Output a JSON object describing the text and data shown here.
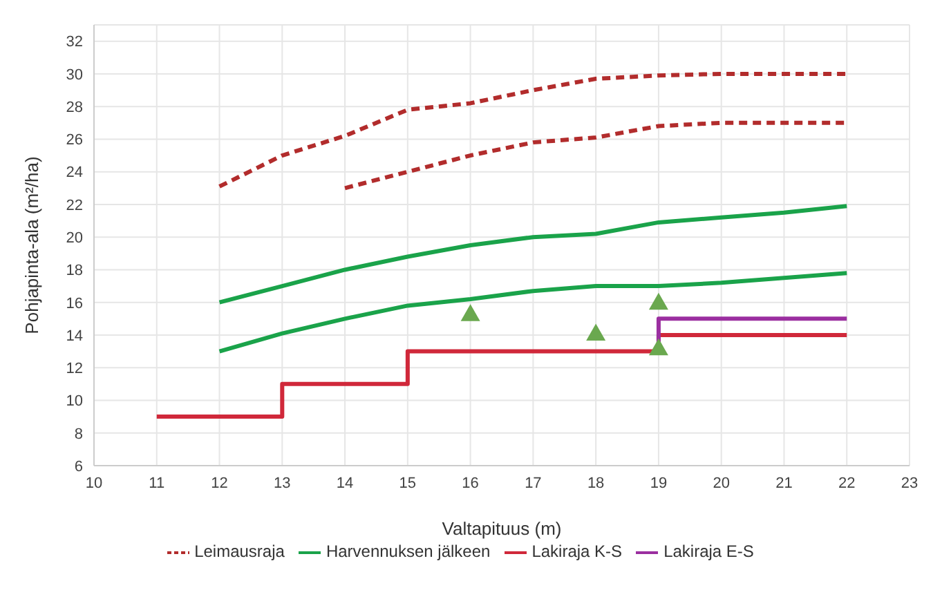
{
  "chart_data": {
    "type": "line",
    "xlabel": "Valtapituus (m)",
    "ylabel": "Pohjapinta-ala (m²/ha)",
    "xlim": [
      10,
      23
    ],
    "xticks": [
      10,
      11,
      12,
      13,
      14,
      15,
      16,
      17,
      18,
      19,
      20,
      21,
      22,
      23
    ],
    "ylim": [
      6,
      33
    ],
    "yticks": [
      6,
      8,
      10,
      12,
      14,
      16,
      18,
      20,
      22,
      24,
      26,
      28,
      30,
      32
    ],
    "grid": true,
    "legend": "bottom",
    "marker": "none",
    "series": [
      {
        "name": "Leimausraja",
        "color": "#b22c2c",
        "line_style": "dashed",
        "x": [
          12,
          13,
          14,
          15,
          16,
          17,
          18,
          19,
          20,
          21,
          22
        ],
        "values": [
          23.1,
          25,
          26.2,
          27.8,
          28.2,
          29,
          29.7,
          29.9,
          30,
          30,
          30
        ]
      },
      {
        "color": "#b22c2c",
        "line_style": "dashed",
        "x": [
          14,
          15,
          16,
          17,
          18,
          19,
          20,
          21,
          22
        ],
        "values": [
          23,
          24,
          25,
          25.8,
          26.1,
          26.8,
          27,
          27,
          27
        ]
      },
      {
        "name": "Harvennuksen jälkeen",
        "color": "#1aa34a",
        "x": [
          12,
          13,
          14,
          15,
          16,
          17,
          18,
          19,
          20,
          21,
          22
        ],
        "values": [
          16,
          17,
          18,
          18.8,
          19.5,
          20,
          20.2,
          20.9,
          21.2,
          21.5,
          21.9
        ]
      },
      {
        "color": "#1aa34a",
        "x": [
          12,
          13,
          14,
          15,
          16,
          17,
          18,
          19,
          20,
          21,
          22
        ],
        "values": [
          13,
          14.1,
          15,
          15.8,
          16.2,
          16.7,
          17,
          17,
          17.2,
          17.5,
          17.8
        ]
      },
      {
        "name": "Lakiraja K-S",
        "type": "step",
        "color": "#d0283a",
        "x": [
          11,
          13,
          15,
          19,
          22
        ],
        "values": [
          9,
          11,
          13,
          14,
          14
        ]
      },
      {
        "name": "Lakiraja E-S",
        "color": "#9b2fa0",
        "x": [
          19,
          19,
          22
        ],
        "values": [
          13,
          15,
          15
        ]
      },
      {
        "type": "scatter",
        "marker": "triangle",
        "color": "#6aa84f",
        "x": [
          16,
          18,
          19,
          19
        ],
        "values": [
          15.3,
          14.1,
          16,
          13.2
        ]
      }
    ]
  }
}
